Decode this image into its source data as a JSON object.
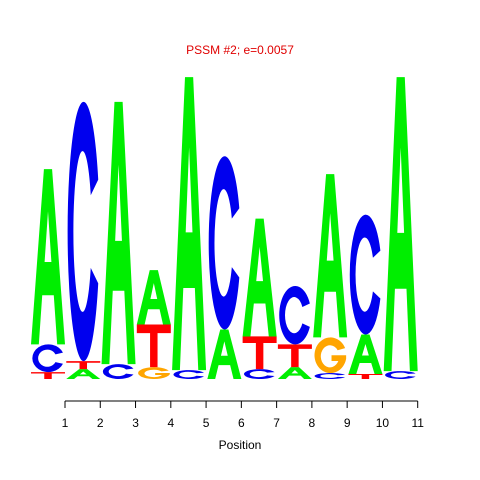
{
  "chart_data": {
    "type": "sequence-logo",
    "title": "PSSM #2; e=0.0057",
    "xlabel": "Position",
    "ylabel": "",
    "alphabet": [
      "A",
      "C",
      "G",
      "T"
    ],
    "colors": {
      "A": "#00ee00",
      "C": "#0000ee",
      "G": "#ffa500",
      "T": "#ff0000"
    },
    "positions": [
      {
        "label": "1",
        "letters": [
          {
            "char": "T",
            "height": 0.07
          },
          {
            "char": "C",
            "height": 0.28
          },
          {
            "char": "A",
            "height": 1.77
          }
        ]
      },
      {
        "label": "2",
        "letters": [
          {
            "char": "A",
            "height": 0.1
          },
          {
            "char": "T",
            "height": 0.08
          },
          {
            "char": "C",
            "height": 2.62
          }
        ]
      },
      {
        "label": "3",
        "letters": [
          {
            "char": "C",
            "height": 0.15
          },
          {
            "char": "A",
            "height": 2.65
          }
        ]
      },
      {
        "label": "4",
        "letters": [
          {
            "char": "G",
            "height": 0.12
          },
          {
            "char": "T",
            "height": 0.43
          },
          {
            "char": "A",
            "height": 0.55
          }
        ]
      },
      {
        "label": "5",
        "letters": [
          {
            "char": "C",
            "height": 0.09
          },
          {
            "char": "A",
            "height": 2.96
          }
        ]
      },
      {
        "label": "6",
        "letters": [
          {
            "char": "A",
            "height": 0.5
          },
          {
            "char": "C",
            "height": 1.75
          }
        ]
      },
      {
        "label": "7",
        "letters": [
          {
            "char": "C",
            "height": 0.1
          },
          {
            "char": "T",
            "height": 0.33
          },
          {
            "char": "A",
            "height": 1.19
          }
        ]
      },
      {
        "label": "8",
        "letters": [
          {
            "char": "A",
            "height": 0.12
          },
          {
            "char": "T",
            "height": 0.23
          },
          {
            "char": "C",
            "height": 0.59
          }
        ]
      },
      {
        "label": "9",
        "letters": [
          {
            "char": "C",
            "height": 0.06
          },
          {
            "char": "G",
            "height": 0.36
          },
          {
            "char": "A",
            "height": 1.65
          }
        ]
      },
      {
        "label": "10",
        "letters": [
          {
            "char": "T",
            "height": 0.05
          },
          {
            "char": "A",
            "height": 0.4
          },
          {
            "char": "C",
            "height": 1.21
          }
        ]
      },
      {
        "label": "11",
        "letters": [
          {
            "char": "C",
            "height": 0.08
          },
          {
            "char": "A",
            "height": 2.97
          }
        ]
      }
    ]
  }
}
